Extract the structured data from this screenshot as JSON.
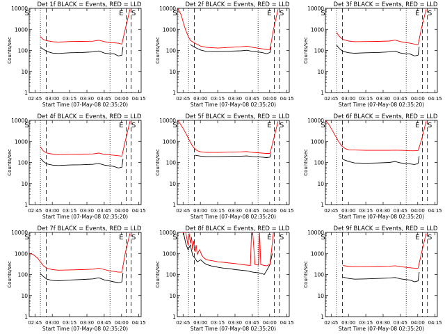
{
  "page": {
    "xlabel": "Start Time (07-May-08 02:35:20)",
    "ylabel": "Counts/sec",
    "x_ticks": [
      "02:45",
      "03:00",
      "03:15",
      "03:30",
      "03:45",
      "04:00",
      "04:15"
    ],
    "y_ticks": [
      "1",
      "10",
      "100",
      "1000",
      "10000"
    ],
    "colors": {
      "events": "#000000",
      "lld": "#ff0000"
    }
  },
  "chart_data": [
    {
      "type": "line",
      "title": "Det 1f BLACK = Events, RED = LLD",
      "xlabel": "Start Time (07-May-08 02:35:20)",
      "ylabel": "Counts/sec",
      "x_unit": "minutes after 02:35:20",
      "xlim": [
        4.7,
        101.7
      ],
      "y_scale": "log",
      "ylim": [
        1,
        10000
      ],
      "markers": {
        "dotted": [
          14.4,
          74.7
        ],
        "dashed": [
          19.5,
          88.7,
          93.1
        ],
        "letters": [
          {
            "text": "S",
            "x": 2.6
          },
          {
            "text": "E",
            "x": 84.5
          },
          {
            "text": "S",
            "x": 95.2
          }
        ]
      },
      "series": [
        {
          "name": "Events",
          "color": "#000000",
          "x": [
            14.4,
            17,
            20,
            25,
            30,
            40,
            50,
            60,
            65,
            70,
            74,
            78,
            82,
            85,
            86
          ],
          "y": [
            140,
            115,
            90,
            75,
            72,
            78,
            80,
            85,
            95,
            75,
            70,
            70,
            55,
            60,
            150
          ]
        },
        {
          "name": "LLD",
          "color": "#ff0000",
          "x": [
            14.4,
            17,
            20,
            25,
            30,
            40,
            50,
            60,
            65,
            70,
            74,
            78,
            82,
            85,
            88,
            92
          ],
          "y": [
            450,
            330,
            290,
            260,
            250,
            265,
            270,
            275,
            305,
            260,
            240,
            230,
            220,
            200,
            1100,
            9000
          ]
        }
      ]
    },
    {
      "type": "line",
      "title": "Det 2f BLACK = Events, RED = LLD",
      "xlabel": "Start Time (07-May-08 02:35:20)",
      "ylabel": "Counts/sec",
      "x_unit": "minutes after 02:35:20",
      "xlim": [
        4.7,
        101.7
      ],
      "y_scale": "log",
      "ylim": [
        1,
        10000
      ],
      "markers": {
        "dotted": [
          14.4,
          74.7
        ],
        "dashed": [
          19.5,
          88.7,
          93.1
        ],
        "letters": [
          {
            "text": "S",
            "x": 2.6
          },
          {
            "text": "E",
            "x": 84.5
          },
          {
            "text": "S",
            "x": 95.2
          }
        ]
      },
      "series": [
        {
          "name": "Events",
          "color": "#000000",
          "x": [
            16,
            20,
            25,
            30,
            40,
            50,
            60,
            65,
            70,
            74,
            78,
            82,
            85,
            86
          ],
          "y": [
            190,
            140,
            105,
            90,
            88,
            92,
            96,
            102,
            90,
            85,
            80,
            70,
            80,
            150
          ]
        },
        {
          "name": "LLD",
          "color": "#ff0000",
          "x": [
            5,
            8,
            10,
            12,
            14,
            16,
            20,
            25,
            30,
            40,
            50,
            60,
            65,
            70,
            74,
            78,
            82,
            85,
            88,
            92
          ],
          "y": [
            10000,
            5000,
            2000,
            900,
            500,
            300,
            220,
            160,
            140,
            130,
            140,
            150,
            160,
            140,
            130,
            120,
            110,
            110,
            1000,
            9000
          ]
        }
      ]
    },
    {
      "type": "line",
      "title": "Det 3f BLACK = Events, RED = LLD",
      "xlabel": "Start Time (07-May-08 02:35:20)",
      "ylabel": "Counts/sec",
      "x_unit": "minutes after 02:35:20",
      "xlim": [
        4.7,
        101.7
      ],
      "y_scale": "log",
      "ylim": [
        1,
        10000
      ],
      "markers": {
        "dotted": [
          14.4,
          74.7
        ],
        "dashed": [
          19.5,
          88.7,
          93.1
        ],
        "letters": [
          {
            "text": "S",
            "x": 2.6
          },
          {
            "text": "E",
            "x": 84.5
          },
          {
            "text": "S",
            "x": 95.2
          }
        ]
      },
      "series": [
        {
          "name": "Events",
          "color": "#000000",
          "x": [
            14.4,
            17,
            20,
            25,
            30,
            40,
            50,
            60,
            65,
            70,
            74,
            78,
            82,
            85,
            86
          ],
          "y": [
            180,
            120,
            90,
            78,
            74,
            78,
            80,
            85,
            92,
            75,
            70,
            68,
            55,
            60,
            150
          ]
        },
        {
          "name": "LLD",
          "color": "#ff0000",
          "x": [
            14.4,
            17,
            20,
            25,
            30,
            40,
            50,
            60,
            65,
            70,
            74,
            78,
            82,
            85,
            88,
            92
          ],
          "y": [
            700,
            450,
            330,
            280,
            260,
            265,
            270,
            280,
            310,
            260,
            240,
            220,
            200,
            190,
            1200,
            9000
          ]
        }
      ]
    },
    {
      "type": "line",
      "title": "Det 4f BLACK = Events, RED = LLD",
      "xlabel": "Start Time (07-May-08 02:35:20)",
      "ylabel": "Counts/sec",
      "x_unit": "minutes after 02:35:20",
      "xlim": [
        4.7,
        101.7
      ],
      "y_scale": "log",
      "ylim": [
        1,
        10000
      ],
      "markers": {
        "dotted": [
          14.4,
          74.7
        ],
        "dashed": [
          19.5,
          88.7,
          93.1
        ],
        "letters": [
          {
            "text": "S",
            "x": 2.6
          },
          {
            "text": "E",
            "x": 84.5
          },
          {
            "text": "S",
            "x": 95.2
          }
        ]
      },
      "series": [
        {
          "name": "Events",
          "color": "#000000",
          "x": [
            14.4,
            17,
            20,
            25,
            30,
            40,
            50,
            60,
            65,
            70,
            74,
            78,
            82,
            85,
            86
          ],
          "y": [
            160,
            110,
            85,
            75,
            72,
            76,
            78,
            82,
            90,
            75,
            70,
            65,
            55,
            60,
            150
          ]
        },
        {
          "name": "LLD",
          "color": "#ff0000",
          "x": [
            14.4,
            17,
            20,
            25,
            30,
            40,
            50,
            60,
            65,
            70,
            74,
            78,
            82,
            85,
            88,
            92
          ],
          "y": [
            550,
            350,
            280,
            250,
            235,
            245,
            250,
            255,
            280,
            240,
            230,
            220,
            210,
            200,
            1100,
            9000
          ]
        }
      ]
    },
    {
      "type": "line",
      "title": "Det 5f BLACK = Events, RED = LLD",
      "xlabel": "Start Time (07-May-08 02:35:20)",
      "ylabel": "Counts/sec",
      "x_unit": "minutes after 02:35:20",
      "xlim": [
        4.7,
        101.7
      ],
      "y_scale": "log",
      "ylim": [
        1,
        10000
      ],
      "markers": {
        "dotted": [
          14.4,
          74.7
        ],
        "dashed": [
          19.5,
          88.7,
          93.1
        ],
        "letters": [
          {
            "text": "S",
            "x": 2.6
          },
          {
            "text": "E",
            "x": 84.5
          },
          {
            "text": "S",
            "x": 95.2
          }
        ]
      },
      "series": [
        {
          "name": "Events",
          "color": "#000000",
          "x": [
            20,
            25,
            30,
            40,
            50,
            60,
            65,
            70,
            74,
            78,
            82,
            85,
            86
          ],
          "y": [
            220,
            200,
            190,
            190,
            195,
            200,
            205,
            190,
            185,
            180,
            170,
            180,
            250
          ]
        },
        {
          "name": "LLD",
          "color": "#ff0000",
          "x": [
            5,
            8,
            12,
            16,
            19,
            22,
            25,
            30,
            40,
            50,
            60,
            65,
            70,
            74,
            78,
            82,
            85,
            88,
            92
          ],
          "y": [
            10000,
            6000,
            2500,
            900,
            500,
            360,
            320,
            300,
            300,
            310,
            320,
            330,
            300,
            290,
            280,
            270,
            270,
            1200,
            9000
          ]
        }
      ]
    },
    {
      "type": "line",
      "title": "Det 6f BLACK = Events, RED = LLD",
      "xlabel": "Start Time (07-May-08 02:35:20)",
      "ylabel": "Counts/sec",
      "x_unit": "minutes after 02:35:20",
      "xlim": [
        4.7,
        101.7
      ],
      "y_scale": "log",
      "ylim": [
        1,
        10000
      ],
      "markers": {
        "dotted": [
          14.4,
          74.7
        ],
        "dashed": [
          19.5,
          88.7,
          93.1
        ],
        "letters": [
          {
            "text": "S",
            "x": 2.6
          },
          {
            "text": "E",
            "x": 84.5
          },
          {
            "text": "S",
            "x": 95.2
          }
        ]
      },
      "series": [
        {
          "name": "Events",
          "color": "#000000",
          "x": [
            20,
            25,
            30,
            40,
            50,
            60,
            65,
            70,
            74,
            78,
            82,
            85,
            86
          ],
          "y": [
            140,
            110,
            95,
            92,
            95,
            100,
            110,
            95,
            90,
            85,
            80,
            90,
            200
          ]
        },
        {
          "name": "LLD",
          "color": "#ff0000",
          "x": [
            5,
            8,
            12,
            16,
            19,
            22,
            25,
            30,
            40,
            50,
            60,
            65,
            70,
            74,
            78,
            82,
            85,
            88,
            92
          ],
          "y": [
            10000,
            6000,
            2500,
            1000,
            600,
            450,
            400,
            390,
            380,
            380,
            380,
            385,
            380,
            370,
            360,
            360,
            370,
            1200,
            9000
          ]
        }
      ]
    },
    {
      "type": "line",
      "title": "Det 7f BLACK = Events, RED = LLD",
      "xlabel": "Start Time (07-May-08 02:35:20)",
      "ylabel": "Counts/sec",
      "x_unit": "minutes after 02:35:20",
      "xlim": [
        4.7,
        101.7
      ],
      "y_scale": "log",
      "ylim": [
        1,
        10000
      ],
      "markers": {
        "dotted": [
          14.4,
          74.7
        ],
        "dashed": [
          19.5,
          88.7,
          93.1
        ],
        "letters": [
          {
            "text": "S",
            "x": 2.6
          },
          {
            "text": "E",
            "x": 84.5
          },
          {
            "text": "S",
            "x": 95.2
          }
        ]
      },
      "series": [
        {
          "name": "Events",
          "color": "#000000",
          "x": [
            14.4,
            17,
            20,
            25,
            30,
            40,
            50,
            60,
            65,
            70,
            74,
            78,
            82,
            85,
            86
          ],
          "y": [
            110,
            80,
            60,
            52,
            50,
            55,
            58,
            62,
            70,
            55,
            50,
            45,
            40,
            45,
            120
          ]
        },
        {
          "name": "LLD",
          "color": "#ff0000",
          "x": [
            5,
            8,
            12,
            14.4,
            17,
            20,
            25,
            30,
            40,
            50,
            60,
            65,
            70,
            74,
            78,
            82,
            85,
            88,
            92
          ],
          "y": [
            1000,
            900,
            600,
            400,
            260,
            200,
            170,
            160,
            165,
            170,
            180,
            200,
            170,
            150,
            140,
            130,
            130,
            1100,
            9000
          ]
        }
      ]
    },
    {
      "type": "line",
      "title": "Det 8f BLACK = Events, RED = LLD",
      "xlabel": "Start Time (07-May-08 02:35:20)",
      "ylabel": "Counts/sec",
      "x_unit": "minutes after 02:35:20",
      "xlim": [
        4.7,
        101.7
      ],
      "y_scale": "log",
      "ylim": [
        1,
        10000
      ],
      "markers": {
        "dotted": [
          14.4,
          74.7
        ],
        "dashed": [
          19.5,
          88.7,
          93.1
        ],
        "letters": [
          {
            "text": "S",
            "x": 2.6
          },
          {
            "text": "E",
            "x": 84.5
          },
          {
            "text": "S",
            "x": 95.2
          }
        ]
      },
      "series": [
        {
          "name": "Events",
          "color": "#000000",
          "x": [
            10,
            12,
            14,
            16,
            18,
            20,
            22,
            25,
            28,
            30,
            35,
            40,
            45,
            50,
            55,
            60,
            65,
            70,
            75,
            78,
            80,
            82,
            85,
            87
          ],
          "y": [
            10000,
            3000,
            1500,
            2500,
            800,
            600,
            400,
            500,
            350,
            300,
            250,
            220,
            200,
            190,
            170,
            160,
            150,
            130,
            120,
            110,
            100,
            150,
            300,
            1000
          ]
        },
        {
          "name": "LLD",
          "color": "#ff0000",
          "x": [
            8,
            12,
            14,
            15,
            16,
            17,
            18,
            19,
            20,
            21,
            22,
            24,
            26,
            28,
            30,
            35,
            40,
            45,
            50,
            55,
            60,
            65,
            68,
            69,
            70,
            72,
            75,
            76,
            77,
            80,
            82,
            85,
            88
          ],
          "y": [
            10000,
            10000,
            2500,
            9000,
            3000,
            6000,
            1500,
            4000,
            1200,
            2500,
            900,
            1500,
            800,
            600,
            500,
            450,
            400,
            380,
            350,
            330,
            300,
            280,
            270,
            10000,
            10000,
            300,
            280,
            10000,
            300,
            270,
            260,
            300,
            10000
          ]
        }
      ]
    },
    {
      "type": "line",
      "title": "Det 9f BLACK = Events, RED = LLD",
      "xlabel": "Start Time (07-May-08 02:35:20)",
      "ylabel": "Counts/sec",
      "x_unit": "minutes after 02:35:20",
      "xlim": [
        4.7,
        101.7
      ],
      "y_scale": "log",
      "ylim": [
        1,
        10000
      ],
      "markers": {
        "dotted": [
          14.4,
          74.7
        ],
        "dashed": [
          19.5,
          88.7,
          93.1
        ],
        "letters": [
          {
            "text": "S",
            "x": 2.6
          },
          {
            "text": "E",
            "x": 84.5
          },
          {
            "text": "S",
            "x": 95.2
          }
        ]
      },
      "series": [
        {
          "name": "Events",
          "color": "#000000",
          "x": [
            20,
            25,
            30,
            40,
            50,
            60,
            65,
            70,
            74,
            78,
            82,
            85,
            86
          ],
          "y": [
            75,
            65,
            60,
            62,
            65,
            68,
            72,
            62,
            58,
            55,
            45,
            50,
            130
          ]
        },
        {
          "name": "LLD",
          "color": "#ff0000",
          "x": [
            20,
            25,
            30,
            40,
            50,
            60,
            65,
            70,
            74,
            78,
            82,
            85,
            88,
            92
          ],
          "y": [
            270,
            240,
            230,
            235,
            240,
            245,
            260,
            235,
            220,
            210,
            200,
            200,
            1100,
            9000
          ]
        }
      ]
    }
  ]
}
